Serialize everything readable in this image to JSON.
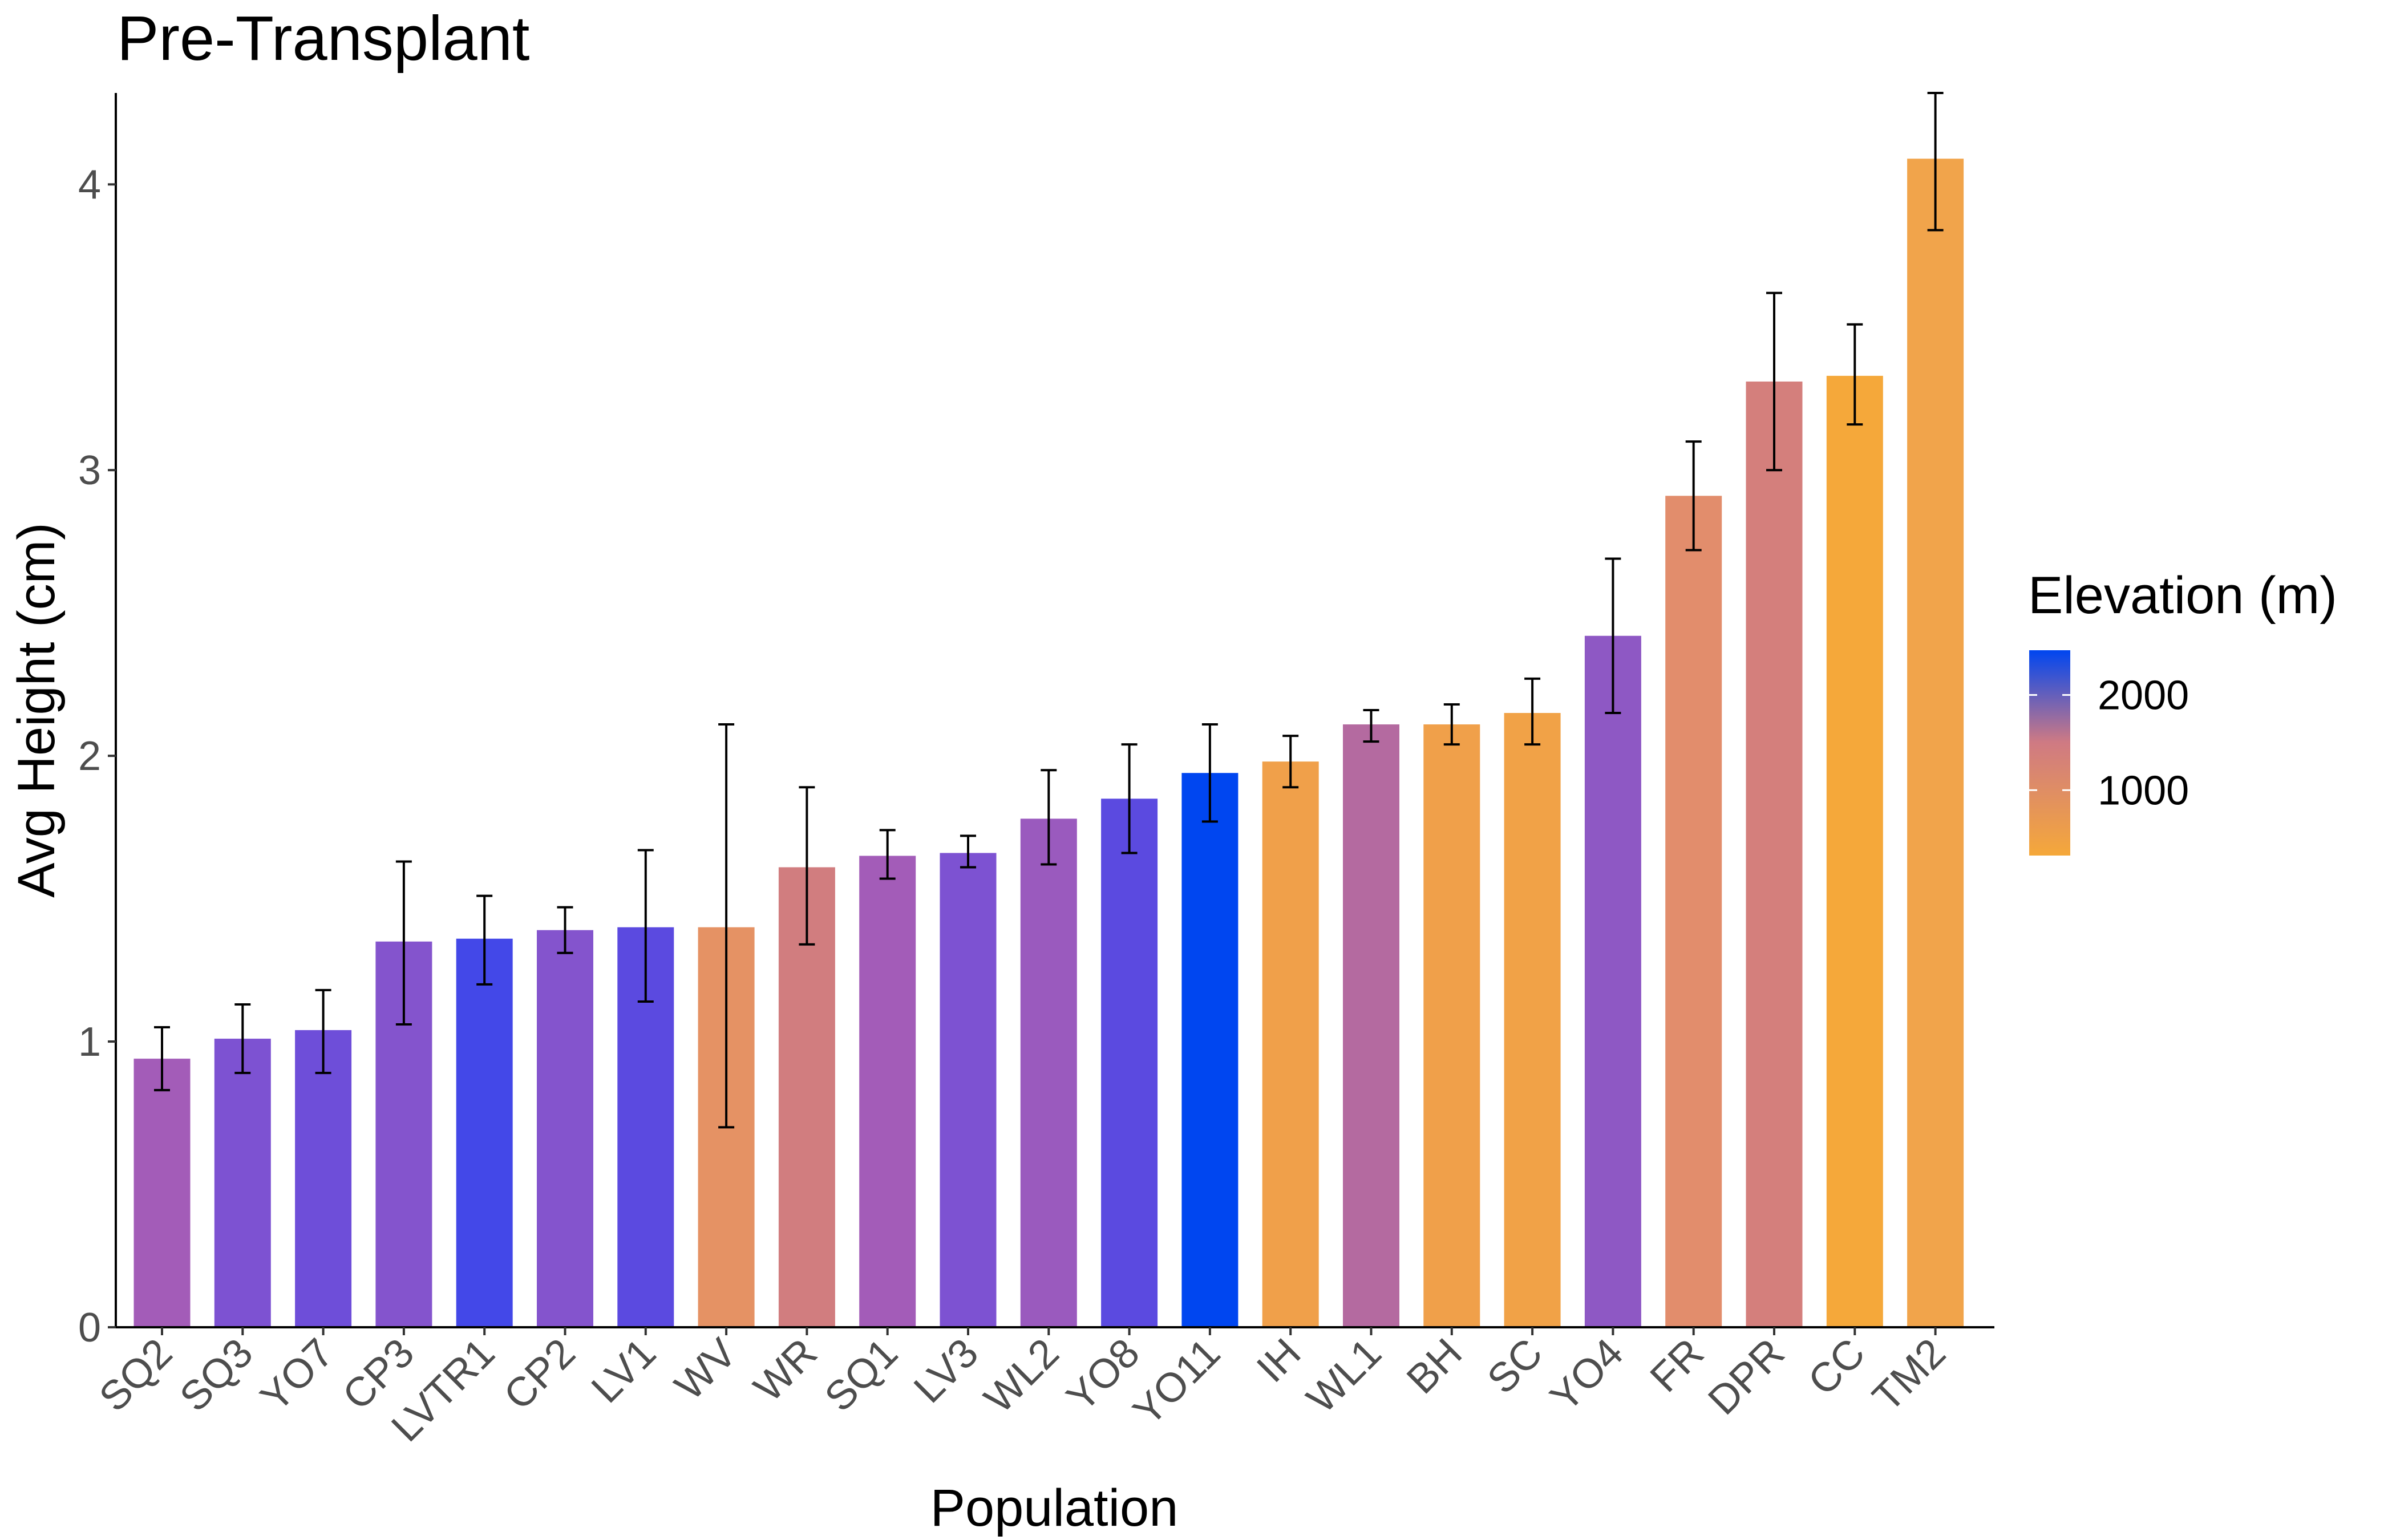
{
  "chart_data": {
    "type": "bar",
    "title": "Pre-Transplant",
    "xlabel": "Population",
    "ylabel": "Avg Height (cm)",
    "ylim": [
      0,
      4.32
    ],
    "yticks": [
      0,
      1,
      2,
      3,
      4
    ],
    "grid": false,
    "legend": {
      "title": "Elevation (m)",
      "placement": "right",
      "type": "colorbar",
      "ticks": [
        2000,
        1000
      ],
      "range": [
        313,
        2470
      ],
      "low_color": "#f5a83a",
      "mid_color": "#cf7a83",
      "high_color": "#0046f0"
    },
    "categories": [
      "SQ2",
      "SQ3",
      "YO7",
      "CP3",
      "LVTR1",
      "CP2",
      "LV1",
      "WV",
      "WR",
      "SQ1",
      "LV3",
      "WL2",
      "YO8",
      "YO11",
      "IH",
      "WL1",
      "BH",
      "SC",
      "YO4",
      "FR",
      "DPR",
      "CC",
      "TM2"
    ],
    "values": [
      0.94,
      1.01,
      1.04,
      1.35,
      1.36,
      1.39,
      1.4,
      1.4,
      1.61,
      1.65,
      1.66,
      1.78,
      1.85,
      1.94,
      1.98,
      2.11,
      2.11,
      2.15,
      2.42,
      2.91,
      3.31,
      3.33,
      4.09
    ],
    "error_low": [
      0.83,
      0.89,
      0.89,
      1.06,
      1.2,
      1.31,
      1.14,
      0.7,
      1.34,
      1.57,
      1.61,
      1.62,
      1.66,
      1.77,
      1.89,
      2.05,
      2.04,
      2.04,
      2.15,
      2.72,
      3.0,
      3.16,
      3.84
    ],
    "error_high": [
      1.05,
      1.13,
      1.18,
      1.63,
      1.51,
      1.47,
      1.67,
      2.11,
      1.89,
      1.74,
      1.72,
      1.95,
      2.04,
      2.11,
      2.07,
      2.16,
      2.18,
      2.27,
      2.69,
      3.1,
      3.62,
      3.51,
      4.32
    ],
    "bar_colors": [
      "#a35cb8",
      "#7d52d2",
      "#6e4ed9",
      "#8454cd",
      "#4348e8",
      "#8454cd",
      "#5b4ae0",
      "#e59264",
      "#d17d7f",
      "#a35cb8",
      "#7d52d2",
      "#9a5abe",
      "#5b4ae0",
      "#0046f0",
      "#f0a04a",
      "#b46aa0",
      "#f0a04a",
      "#f1a247",
      "#8e58c4",
      "#e28d6c",
      "#d47f7c",
      "#f5a83a",
      "#f1a44b"
    ]
  }
}
